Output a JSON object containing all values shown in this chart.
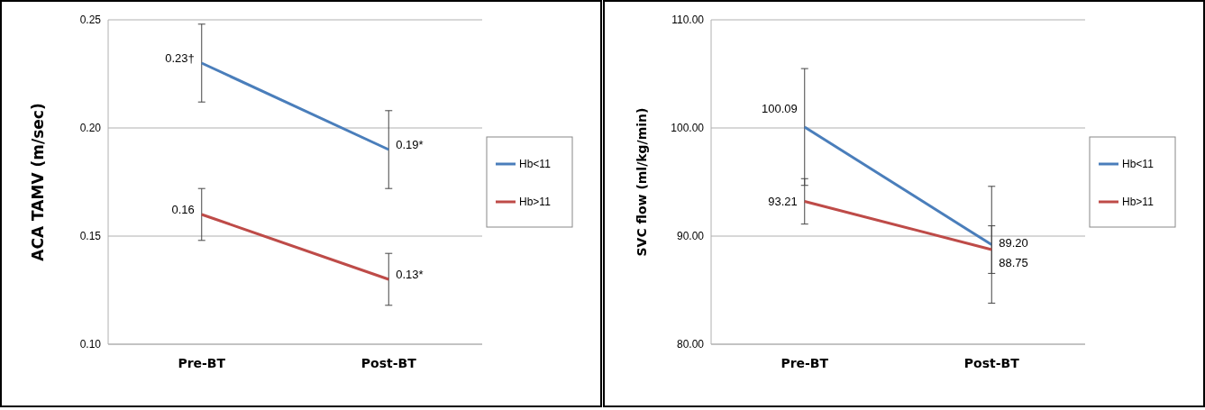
{
  "chart_data": [
    {
      "type": "line",
      "ylabel": "ACA TAMV (m/sec)",
      "categories": [
        "Pre-BT",
        "Post-BT"
      ],
      "ylim": [
        0.1,
        0.25
      ],
      "yticks": [
        {
          "value": 0.1,
          "label": "0.10"
        },
        {
          "value": 0.15,
          "label": "0.15"
        },
        {
          "value": 0.2,
          "label": "0.20"
        },
        {
          "value": 0.25,
          "label": "0.25"
        }
      ],
      "grid": "y",
      "legend": "right",
      "series": [
        {
          "name": "Hb<11",
          "color": "#4a7ebb",
          "values": [
            0.23,
            0.19
          ],
          "errors": [
            0.018,
            0.018
          ],
          "value_labels": [
            "0.23†",
            "0.19*"
          ]
        },
        {
          "name": "Hb>11",
          "color": "#be4b48",
          "values": [
            0.16,
            0.13
          ],
          "errors": [
            0.012,
            0.012
          ],
          "value_labels": [
            "0.16",
            "0.13*"
          ]
        }
      ]
    },
    {
      "type": "line",
      "ylabel": "SVC flow (ml/kg/min)",
      "categories": [
        "Pre-BT",
        "Post-BT"
      ],
      "ylim": [
        80,
        110
      ],
      "yticks": [
        {
          "value": 80,
          "label": "80.00"
        },
        {
          "value": 90,
          "label": "90.00"
        },
        {
          "value": 100,
          "label": "100.00"
        },
        {
          "value": 110,
          "label": "110.00"
        }
      ],
      "grid": "y",
      "legend": "right",
      "series": [
        {
          "name": "Hb<11",
          "color": "#4a7ebb",
          "values": [
            100.09,
            89.2
          ],
          "errors": [
            5.4,
            5.4
          ],
          "value_labels": [
            "100.09",
            "89.20"
          ]
        },
        {
          "name": "Hb>11",
          "color": "#be4b48",
          "values": [
            93.21,
            88.75
          ],
          "errors": [
            2.1,
            2.2
          ],
          "value_labels": [
            "93.21",
            "88.75"
          ]
        }
      ]
    }
  ]
}
